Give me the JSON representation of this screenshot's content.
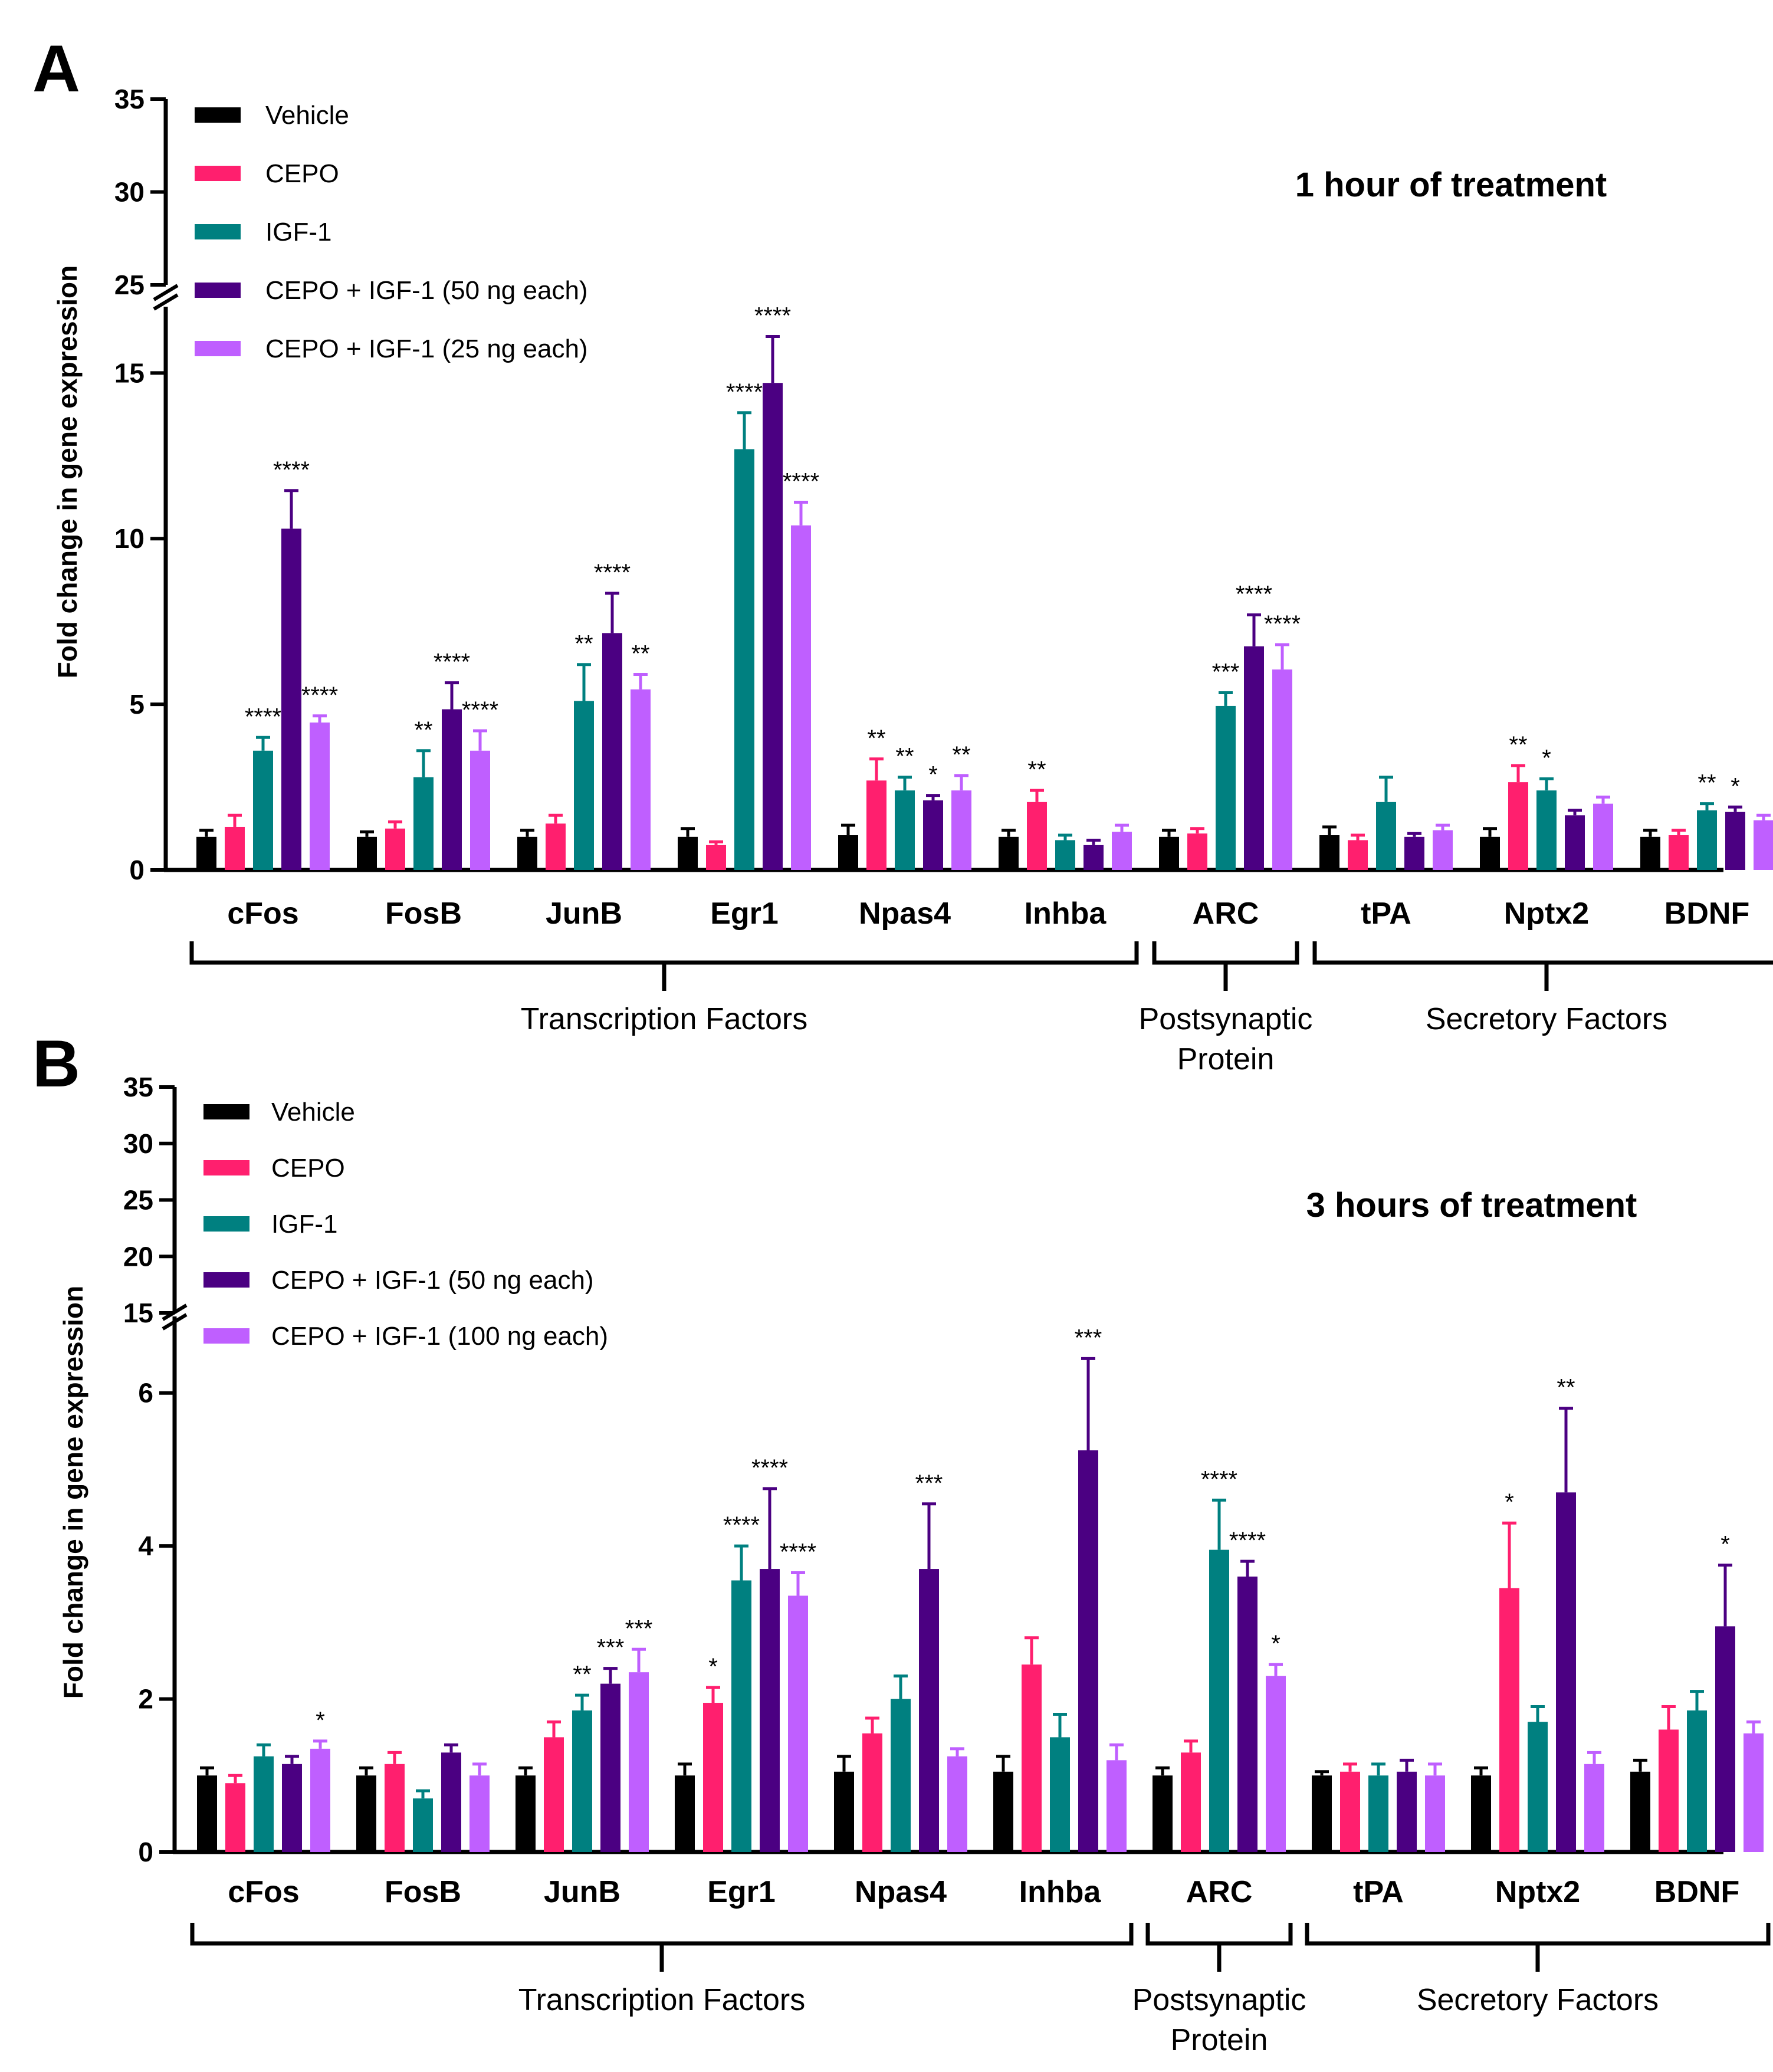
{
  "colors": {
    "series": [
      "#000000",
      "#ff1f6e",
      "#008080",
      "#4b0082",
      "#bf5fff"
    ]
  },
  "chart_data": [
    {
      "type": "bar",
      "panel_label": "A",
      "title": "1 hour of treatment",
      "ylabel": "Fold change in gene expression",
      "ylim_lower": [
        0,
        17
      ],
      "ylim_upper": [
        25,
        35
      ],
      "yticks_lower": [
        "0",
        "5",
        "10",
        "15"
      ],
      "yticks_upper": [
        "25",
        "30",
        "35"
      ],
      "categories": [
        "cFos",
        "FosB",
        "JunB",
        "Egr1",
        "Npas4",
        "Inhba",
        "ARC",
        "tPA",
        "Nptx2",
        "BDNF"
      ],
      "series": [
        {
          "name": "Vehicle",
          "values": [
            1.0,
            1.0,
            1.0,
            1.0,
            1.05,
            1.0,
            1.0,
            1.05,
            1.0,
            1.0
          ],
          "errors": [
            0.2,
            0.15,
            0.2,
            0.25,
            0.3,
            0.2,
            0.2,
            0.25,
            0.25,
            0.2
          ],
          "sig": [
            "",
            "",
            "",
            "",
            "",
            "",
            "",
            "",
            "",
            ""
          ]
        },
        {
          "name": "CEPO",
          "values": [
            1.3,
            1.25,
            1.4,
            0.75,
            2.7,
            2.05,
            1.1,
            0.9,
            2.65,
            1.05
          ],
          "errors": [
            0.35,
            0.2,
            0.25,
            0.1,
            0.65,
            0.35,
            0.15,
            0.15,
            0.5,
            0.15
          ],
          "sig": [
            "",
            "",
            "",
            "",
            "**",
            "**",
            "",
            "",
            "**",
            ""
          ]
        },
        {
          "name": "IGF-1",
          "values": [
            3.6,
            2.8,
            5.1,
            12.7,
            2.4,
            0.9,
            4.95,
            2.05,
            2.4,
            1.8
          ],
          "errors": [
            0.4,
            0.8,
            1.1,
            1.1,
            0.4,
            0.15,
            0.4,
            0.75,
            0.35,
            0.2
          ],
          "sig": [
            "****",
            "**",
            "**",
            "****",
            "**",
            "",
            "***",
            "",
            "*",
            "**"
          ]
        },
        {
          "name": "CEPO + IGF-1 (50 ng each)",
          "values": [
            10.3,
            4.85,
            7.15,
            14.7,
            2.1,
            0.75,
            6.75,
            1.0,
            1.65,
            1.75
          ],
          "errors": [
            1.15,
            0.8,
            1.2,
            1.4,
            0.15,
            0.15,
            0.95,
            0.1,
            0.15,
            0.15
          ],
          "sig": [
            "****",
            "****",
            "****",
            "****",
            "*",
            "",
            "****",
            "",
            "",
            "*"
          ]
        },
        {
          "name": "CEPO + IGF-1 (25 ng each)",
          "values": [
            4.45,
            3.6,
            5.45,
            10.4,
            2.4,
            1.15,
            6.05,
            1.2,
            2.0,
            1.5
          ],
          "errors": [
            0.2,
            0.6,
            0.45,
            0.7,
            0.45,
            0.2,
            0.75,
            0.15,
            0.2,
            0.15
          ],
          "sig": [
            "****",
            "****",
            "**",
            "****",
            "**",
            "",
            "****",
            "",
            "",
            ""
          ]
        }
      ],
      "groups": [
        {
          "label_lines": [
            "Transcription Factors"
          ],
          "from": 0,
          "to": 5
        },
        {
          "label_lines": [
            "Postsynaptic",
            "Protein"
          ],
          "from": 6,
          "to": 6
        },
        {
          "label_lines": [
            "Secretory Factors"
          ],
          "from": 7,
          "to": 9
        }
      ]
    },
    {
      "type": "bar",
      "panel_label": "B",
      "title": "3 hours of treatment",
      "ylabel": "Fold change in gene expression",
      "ylim_lower": [
        0,
        7
      ],
      "ylim_upper": [
        15,
        35
      ],
      "yticks_lower": [
        "0",
        "2",
        "4",
        "6"
      ],
      "yticks_upper": [
        "15",
        "20",
        "25",
        "30",
        "35"
      ],
      "categories": [
        "cFos",
        "FosB",
        "JunB",
        "Egr1",
        "Npas4",
        "Inhba",
        "ARC",
        "tPA",
        "Nptx2",
        "BDNF"
      ],
      "series": [
        {
          "name": "Vehicle",
          "values": [
            1.0,
            1.0,
            1.0,
            1.0,
            1.05,
            1.05,
            1.0,
            1.0,
            1.0,
            1.05
          ],
          "errors": [
            0.1,
            0.1,
            0.1,
            0.15,
            0.2,
            0.2,
            0.1,
            0.05,
            0.1,
            0.15
          ],
          "sig": [
            "",
            "",
            "",
            "",
            "",
            "",
            "",
            "",
            "",
            ""
          ]
        },
        {
          "name": "CEPO",
          "values": [
            0.9,
            1.15,
            1.5,
            1.95,
            1.55,
            2.45,
            1.3,
            1.05,
            3.45,
            1.6
          ],
          "errors": [
            0.1,
            0.15,
            0.2,
            0.2,
            0.2,
            0.35,
            0.15,
            0.1,
            0.85,
            0.3
          ],
          "sig": [
            "",
            "",
            "",
            "*",
            "",
            "",
            "",
            "",
            "*",
            ""
          ]
        },
        {
          "name": "IGF-1",
          "values": [
            1.25,
            0.7,
            1.85,
            3.55,
            2.0,
            1.5,
            3.95,
            1.0,
            1.7,
            1.85
          ],
          "errors": [
            0.15,
            0.1,
            0.2,
            0.45,
            0.3,
            0.3,
            0.65,
            0.15,
            0.2,
            0.25
          ],
          "sig": [
            "",
            "",
            "**",
            "****",
            "",
            "",
            "****",
            "",
            "",
            ""
          ]
        },
        {
          "name": "CEPO + IGF-1 (50 ng each)",
          "values": [
            1.15,
            1.3,
            2.2,
            3.7,
            3.7,
            5.25,
            3.6,
            1.05,
            4.7,
            2.95
          ],
          "errors": [
            0.1,
            0.1,
            0.2,
            1.05,
            0.85,
            1.2,
            0.2,
            0.15,
            1.1,
            0.8
          ],
          "sig": [
            "",
            "",
            "***",
            "****",
            "***",
            "***",
            "****",
            "",
            "**",
            "*"
          ]
        },
        {
          "name": "CEPO + IGF-1 (100 ng each)",
          "values": [
            1.35,
            1.0,
            2.35,
            3.35,
            1.25,
            1.2,
            2.3,
            1.0,
            1.15,
            1.55
          ],
          "errors": [
            0.1,
            0.15,
            0.3,
            0.3,
            0.1,
            0.2,
            0.15,
            0.15,
            0.15,
            0.15
          ],
          "sig": [
            "*",
            "",
            "***",
            "****",
            "",
            "",
            "*",
            "",
            "",
            ""
          ]
        }
      ],
      "groups": [
        {
          "label_lines": [
            "Transcription Factors"
          ],
          "from": 0,
          "to": 5
        },
        {
          "label_lines": [
            "Postsynaptic",
            "Protein"
          ],
          "from": 6,
          "to": 6
        },
        {
          "label_lines": [
            "Secretory Factors"
          ],
          "from": 7,
          "to": 9
        }
      ]
    }
  ]
}
